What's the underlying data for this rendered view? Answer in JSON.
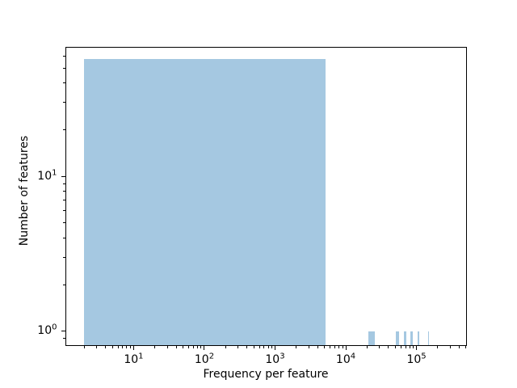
{
  "chart_data": {
    "type": "bar",
    "subtype": "histogram",
    "title": "",
    "xlabel": "Frequency per feature",
    "ylabel": "Number of features",
    "x_scale": "log",
    "y_scale": "log",
    "xlim": [
      1.07,
      510000
    ],
    "ylim": [
      0.81,
      69
    ],
    "grid": false,
    "legend": null,
    "bar_color": "#a5c8e1",
    "axis_color": "#000000",
    "x_major_ticks": [
      {
        "value": 10,
        "label": "10^1"
      },
      {
        "value": 100,
        "label": "10^2"
      },
      {
        "value": 1000,
        "label": "10^3"
      },
      {
        "value": 10000,
        "label": "10^4"
      },
      {
        "value": 100000,
        "label": "10^5"
      }
    ],
    "y_major_ticks": [
      {
        "value": 1,
        "label": "10^0"
      },
      {
        "value": 10,
        "label": "10^1"
      }
    ],
    "bars": [
      {
        "x_start": 2,
        "x_end": 5170,
        "count": 57
      },
      {
        "x_start": 20670,
        "x_end": 25830,
        "count": 1
      },
      {
        "x_start": 51660,
        "x_end": 56830,
        "count": 1
      },
      {
        "x_start": 67160,
        "x_end": 72330,
        "count": 1
      },
      {
        "x_start": 82660,
        "x_end": 87820,
        "count": 1
      },
      {
        "x_start": 103320,
        "x_end": 108490,
        "count": 1
      },
      {
        "x_start": 144650,
        "x_end": 149820,
        "count": 1
      }
    ]
  }
}
